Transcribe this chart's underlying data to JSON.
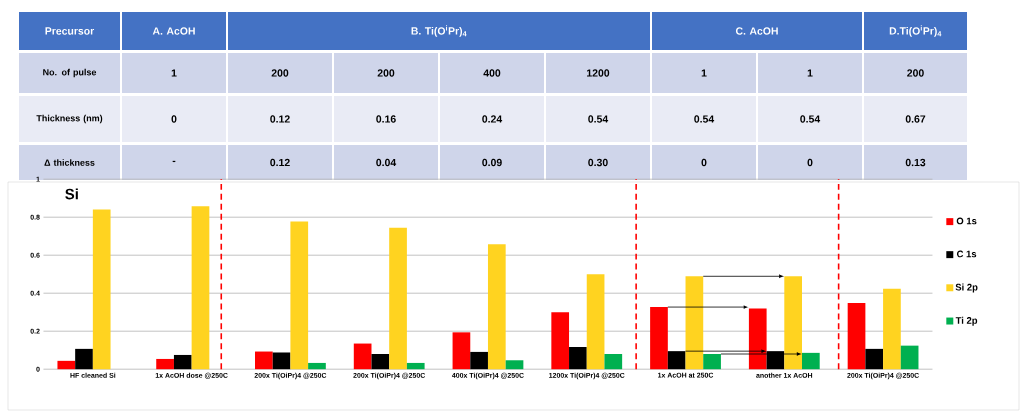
{
  "chart_data": {
    "type": "bar",
    "title": "Si",
    "categories": [
      "HF cleaned Si",
      "1x AcOH dose @250C",
      "200x Ti(OiPr)4 @250C",
      "200x Ti(OiPr)4 @250C",
      "400x Ti(OiPr)4 @250C",
      "1200x Ti(OiPr)4 @250C",
      "1x AcOH at 250C",
      "another 1x AcOH",
      "200x Ti(OiPr)4 @250C"
    ],
    "series": [
      {
        "name": "O 1s",
        "color": "#ff0000",
        "values": [
          0.044,
          0.054,
          0.093,
          0.135,
          0.194,
          0.3,
          0.327,
          0.32,
          0.348
        ]
      },
      {
        "name": "C 1s",
        "color": "#000000",
        "values": [
          0.107,
          0.075,
          0.088,
          0.08,
          0.091,
          0.117,
          0.095,
          0.095,
          0.107
        ]
      },
      {
        "name": "Si 2p",
        "color": "#ffd320",
        "values": [
          0.84,
          0.858,
          0.778,
          0.744,
          0.658,
          0.5,
          0.489,
          0.489,
          0.424
        ]
      },
      {
        "name": "Ti 2p",
        "color": "#00b050",
        "values": [
          null,
          null,
          0.033,
          0.033,
          0.047,
          0.08,
          0.08,
          0.086,
          0.124
        ]
      }
    ],
    "ylim": [
      0,
      1
    ],
    "yticks": [
      0,
      0.2,
      0.4,
      0.6,
      0.8,
      1
    ],
    "grid": "y",
    "legend": "right",
    "annotations": [
      "Precursor",
      "A. AcOH",
      "B. Ti(O$^{i}$Pr)$_{4}$",
      "C. AcOH",
      "D.Ti(O$^{i}$Pr)$_{4}$",
      "No. of pulse",
      "1",
      "200",
      "200",
      "400",
      "1200",
      "1",
      "1",
      "200",
      "Thickness (nm)",
      "0",
      "0.12",
      "0.16",
      "0.24",
      "0.54",
      "0.54",
      "0.54",
      "0.67",
      "Δ thickness",
      "-",
      "0.12",
      "0.04",
      "0.09",
      "0.30",
      "0",
      "0",
      "0.13"
    ]
  }
}
